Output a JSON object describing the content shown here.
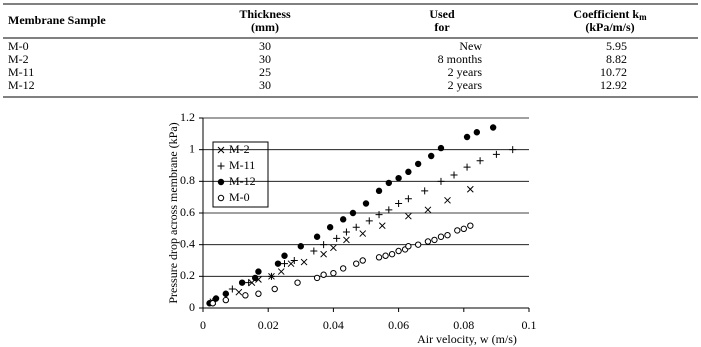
{
  "table": {
    "header": [
      [
        "Membrane Sample"
      ],
      [
        "Thickness",
        "(mm)"
      ],
      [
        "Used",
        "for"
      ],
      [
        {
          "text": "Coefficient k",
          "sub": "m"
        },
        "(kPa/m/s)"
      ]
    ],
    "rows": [
      [
        "M-0",
        "30",
        "New",
        "5.95"
      ],
      [
        "M-2",
        "30",
        "8 months",
        "8.82"
      ],
      [
        "M-11",
        "25",
        "2 years",
        "10.72"
      ],
      [
        "M-12",
        "30",
        "2 years",
        "12.92"
      ]
    ]
  },
  "chart_data": {
    "type": "scatter",
    "x_label": "Air velocity, w (m/s)",
    "y_label": "Pressure drop across membrane (kPa)",
    "xlim": [
      0,
      0.1
    ],
    "xticks": [
      0,
      0.02,
      0.04,
      0.06,
      0.08,
      0.1
    ],
    "ylim": [
      0,
      1.2
    ],
    "yticks": [
      0,
      0.2,
      0.4,
      0.6,
      0.8,
      1,
      1.2
    ],
    "grid": true,
    "legend": "upper-left",
    "series": [
      {
        "name": "M-2",
        "color": "#000000",
        "marker": "x",
        "x": [
          0.003,
          0.007,
          0.011,
          0.015,
          0.017,
          0.021,
          0.024,
          0.027,
          0.031,
          0.037,
          0.04,
          0.044,
          0.049,
          0.055,
          0.063,
          0.069,
          0.075,
          0.082
        ],
        "values": [
          0.04,
          0.07,
          0.1,
          0.16,
          0.18,
          0.2,
          0.23,
          0.28,
          0.29,
          0.34,
          0.38,
          0.43,
          0.47,
          0.52,
          0.58,
          0.62,
          0.68,
          0.75
        ]
      },
      {
        "name": "M-11",
        "color": "#000000",
        "marker": "plus",
        "x": [
          0.003,
          0.009,
          0.014,
          0.021,
          0.025,
          0.028,
          0.034,
          0.037,
          0.041,
          0.044,
          0.047,
          0.051,
          0.054,
          0.057,
          0.06,
          0.063,
          0.068,
          0.073,
          0.077,
          0.081,
          0.085,
          0.09,
          0.095
        ],
        "values": [
          0.04,
          0.12,
          0.16,
          0.2,
          0.28,
          0.3,
          0.36,
          0.4,
          0.44,
          0.48,
          0.51,
          0.55,
          0.59,
          0.62,
          0.66,
          0.69,
          0.74,
          0.8,
          0.84,
          0.89,
          0.93,
          0.97,
          1.0
        ]
      },
      {
        "name": "M-12",
        "color": "#000000",
        "marker": "filled-circle",
        "x": [
          0.002,
          0.004,
          0.007,
          0.012,
          0.016,
          0.017,
          0.023,
          0.025,
          0.03,
          0.035,
          0.039,
          0.043,
          0.046,
          0.05,
          0.054,
          0.057,
          0.06,
          0.063,
          0.066,
          0.07,
          0.073,
          0.081,
          0.084,
          0.089
        ],
        "values": [
          0.03,
          0.06,
          0.09,
          0.16,
          0.19,
          0.23,
          0.28,
          0.33,
          0.39,
          0.45,
          0.51,
          0.56,
          0.6,
          0.66,
          0.74,
          0.79,
          0.82,
          0.86,
          0.91,
          0.96,
          1.01,
          1.08,
          1.11,
          1.14
        ]
      },
      {
        "name": "M-0",
        "color": "#000000",
        "marker": "open-circle",
        "x": [
          0.003,
          0.007,
          0.013,
          0.017,
          0.022,
          0.029,
          0.035,
          0.037,
          0.04,
          0.043,
          0.047,
          0.049,
          0.054,
          0.056,
          0.058,
          0.06,
          0.062,
          0.063,
          0.066,
          0.069,
          0.071,
          0.073,
          0.075,
          0.078,
          0.08,
          0.082
        ],
        "values": [
          0.03,
          0.05,
          0.08,
          0.09,
          0.12,
          0.16,
          0.19,
          0.21,
          0.22,
          0.25,
          0.28,
          0.3,
          0.32,
          0.33,
          0.34,
          0.36,
          0.37,
          0.39,
          0.4,
          0.42,
          0.43,
          0.45,
          0.46,
          0.49,
          0.5,
          0.52
        ]
      }
    ]
  }
}
